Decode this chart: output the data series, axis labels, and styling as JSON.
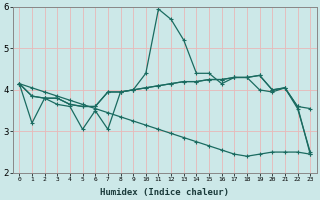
{
  "xlabel": "Humidex (Indice chaleur)",
  "ylabel": "",
  "xlim": [
    -0.5,
    23.5
  ],
  "ylim": [
    2,
    6
  ],
  "xticks": [
    0,
    1,
    2,
    3,
    4,
    5,
    6,
    7,
    8,
    9,
    10,
    11,
    12,
    13,
    14,
    15,
    16,
    17,
    18,
    19,
    20,
    21,
    22,
    23
  ],
  "yticks": [
    2,
    3,
    4,
    5,
    6
  ],
  "bg_color": "#cce8e8",
  "grid_color": "#e8b8b8",
  "line_color": "#1a6b60",
  "line1_y": [
    4.15,
    3.2,
    3.8,
    3.65,
    3.6,
    3.05,
    3.5,
    3.05,
    3.95,
    4.0,
    4.4,
    5.95,
    5.7,
    5.2,
    4.4,
    4.4,
    4.15,
    4.3,
    4.3,
    4.0,
    3.95,
    4.05,
    3.55,
    2.5
  ],
  "line2_y": [
    4.15,
    3.85,
    3.8,
    3.8,
    3.65,
    3.6,
    3.6,
    3.95,
    3.95,
    4.0,
    4.05,
    4.1,
    4.15,
    4.2,
    4.2,
    4.25,
    4.25,
    4.3,
    4.3,
    4.35,
    4.0,
    4.05,
    3.6,
    3.55
  ],
  "line3_y": [
    4.15,
    3.85,
    3.8,
    3.8,
    3.65,
    3.6,
    3.6,
    3.95,
    3.95,
    4.0,
    4.05,
    4.1,
    4.15,
    4.2,
    4.2,
    4.25,
    4.25,
    4.3,
    4.3,
    4.35,
    4.0,
    4.05,
    3.6,
    2.45
  ],
  "line4_y": [
    4.15,
    4.05,
    3.95,
    3.85,
    3.75,
    3.65,
    3.55,
    3.45,
    3.35,
    3.25,
    3.15,
    3.05,
    2.95,
    2.85,
    2.75,
    2.65,
    2.55,
    2.45,
    2.4,
    2.45,
    2.5,
    2.5,
    2.5,
    2.45
  ],
  "marker": "+",
  "markersize": 3,
  "linewidth": 0.9
}
